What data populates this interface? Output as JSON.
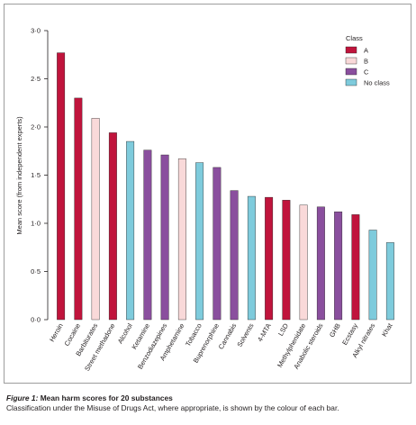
{
  "caption": {
    "figure_number": "Figure 1:",
    "title": "Mean harm scores for 20 substances",
    "text": "Classification under the Misuse of Drugs Act, where appropriate, is shown by the colour of each bar."
  },
  "chart_data": {
    "type": "bar",
    "title": "",
    "xlabel": "",
    "ylabel": "Mean score (from independent experts)",
    "ylim": [
      0,
      3.0
    ],
    "yticks": [
      0,
      0.5,
      1.0,
      1.5,
      2.0,
      2.5,
      3.0
    ],
    "ytick_labels": [
      "0·0",
      "0·5",
      "1·0",
      "1·5",
      "2·0",
      "2·5",
      "3·0"
    ],
    "grid": false,
    "legend_position": "top-right",
    "legend_title": "Class",
    "classes": [
      {
        "key": "A",
        "label": "A",
        "color": "#c0143c"
      },
      {
        "key": "B",
        "label": "B",
        "color": "#f9d9d9"
      },
      {
        "key": "C",
        "label": "C",
        "color": "#8a4f9e"
      },
      {
        "key": "none",
        "label": "No class",
        "color": "#7ecbdc"
      }
    ],
    "categories": [
      "Heroin",
      "Cocaine",
      "Barbiturates",
      "Street methadone",
      "Alcohol",
      "Ketamine",
      "Benzodiazepines",
      "Amphetamine",
      "Tobacco",
      "Buprenorphine",
      "Cannabis",
      "Solvents",
      "4-MTA",
      "LSD",
      "Methylphenidate",
      "Anabolic steroids",
      "GHB",
      "Ecstasy",
      "Alkyl nitrates",
      "Khat"
    ],
    "values": [
      2.77,
      2.3,
      2.09,
      1.94,
      1.85,
      1.76,
      1.71,
      1.67,
      1.63,
      1.58,
      1.34,
      1.28,
      1.27,
      1.24,
      1.19,
      1.17,
      1.12,
      1.09,
      0.93,
      0.8
    ],
    "bar_classes": [
      "A",
      "A",
      "B",
      "A",
      "none",
      "C",
      "C",
      "B",
      "none",
      "C",
      "C",
      "none",
      "A",
      "A",
      "B",
      "C",
      "C",
      "A",
      "none",
      "none"
    ]
  }
}
